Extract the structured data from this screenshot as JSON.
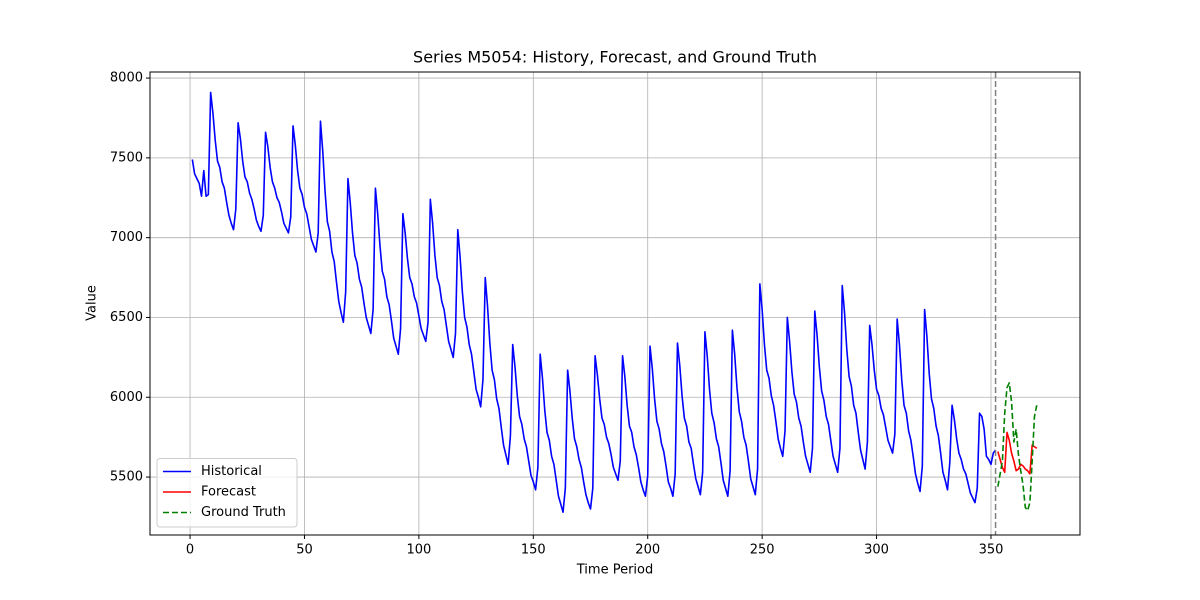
{
  "chart_data": {
    "type": "line",
    "title": "Series M5054: History, Forecast, and Ground Truth",
    "x_label": "Time Period",
    "y_label": "Value",
    "xlim": [
      -17.5,
      388.9
    ],
    "ylim": [
      5137,
      8038
    ],
    "xticks": [
      0,
      50,
      100,
      150,
      200,
      250,
      300,
      350
    ],
    "yticks": [
      5500,
      6000,
      6500,
      7000,
      7500,
      8000
    ],
    "grid": true,
    "legend": "lower left",
    "vline": 352,
    "vline_color": "#808080",
    "series": [
      {
        "name": "Historical",
        "color": "#0000ff",
        "linestyle": "solid",
        "x": [
          1,
          2,
          3,
          4,
          5,
          6,
          7,
          8,
          9,
          10,
          11,
          12,
          13,
          14,
          15,
          16,
          17,
          18,
          19,
          20,
          21,
          22,
          23,
          24,
          25,
          26,
          27,
          28,
          29,
          30,
          31,
          32,
          33,
          34,
          35,
          36,
          37,
          38,
          39,
          40,
          41,
          42,
          43,
          44,
          45,
          46,
          47,
          48,
          49,
          50,
          51,
          52,
          53,
          54,
          55,
          56,
          57,
          58,
          59,
          60,
          61,
          62,
          63,
          64,
          65,
          66,
          67,
          68,
          69,
          70,
          71,
          72,
          73,
          74,
          75,
          76,
          77,
          78,
          79,
          80,
          81,
          82,
          83,
          84,
          85,
          86,
          87,
          88,
          89,
          90,
          91,
          92,
          93,
          94,
          95,
          96,
          97,
          98,
          99,
          100,
          101,
          102,
          103,
          104,
          105,
          106,
          107,
          108,
          109,
          110,
          111,
          112,
          113,
          114,
          115,
          116,
          117,
          118,
          119,
          120,
          121,
          122,
          123,
          124,
          125,
          126,
          127,
          128,
          129,
          130,
          131,
          132,
          133,
          134,
          135,
          136,
          137,
          138,
          139,
          140,
          141,
          142,
          143,
          144,
          145,
          146,
          147,
          148,
          149,
          150,
          151,
          152,
          153,
          154,
          155,
          156,
          157,
          158,
          159,
          160,
          161,
          162,
          163,
          164,
          165,
          166,
          167,
          168,
          169,
          170,
          171,
          172,
          173,
          174,
          175,
          176,
          177,
          178,
          179,
          180,
          181,
          182,
          183,
          184,
          185,
          186,
          187,
          188,
          189,
          190,
          191,
          192,
          193,
          194,
          195,
          196,
          197,
          198,
          199,
          200,
          201,
          202,
          203,
          204,
          205,
          206,
          207,
          208,
          209,
          210,
          211,
          212,
          213,
          214,
          215,
          216,
          217,
          218,
          219,
          220,
          221,
          222,
          223,
          224,
          225,
          226,
          227,
          228,
          229,
          230,
          231,
          232,
          233,
          234,
          235,
          236,
          237,
          238,
          239,
          240,
          241,
          242,
          243,
          244,
          245,
          246,
          247,
          248,
          249,
          250,
          251,
          252,
          253,
          254,
          255,
          256,
          257,
          258,
          259,
          260,
          261,
          262,
          263,
          264,
          265,
          266,
          267,
          268,
          269,
          270,
          271,
          272,
          273,
          274,
          275,
          276,
          277,
          278,
          279,
          280,
          281,
          282,
          283,
          284,
          285,
          286,
          287,
          288,
          289,
          290,
          291,
          292,
          293,
          294,
          295,
          296,
          297,
          298,
          299,
          300,
          301,
          302,
          303,
          304,
          305,
          306,
          307,
          308,
          309,
          310,
          311,
          312,
          313,
          314,
          315,
          316,
          317,
          318,
          319,
          320,
          321,
          322,
          323,
          324,
          325,
          326,
          327,
          328,
          329,
          330,
          331,
          332,
          333,
          334,
          335,
          336,
          337,
          338,
          339,
          340,
          341,
          342,
          343,
          344,
          345,
          346,
          347,
          348,
          349,
          350,
          351,
          352
        ],
        "values": [
          7490,
          7400,
          7370,
          7340,
          7260,
          7420,
          7260,
          7270,
          7910,
          7780,
          7610,
          7480,
          7440,
          7350,
          7310,
          7220,
          7140,
          7090,
          7050,
          7180,
          7720,
          7620,
          7480,
          7380,
          7350,
          7280,
          7240,
          7180,
          7110,
          7070,
          7040,
          7140,
          7660,
          7570,
          7440,
          7350,
          7310,
          7250,
          7220,
          7160,
          7090,
          7060,
          7030,
          7130,
          7700,
          7580,
          7420,
          7310,
          7270,
          7190,
          7150,
          7070,
          6990,
          6950,
          6910,
          7030,
          7730,
          7540,
          7290,
          7100,
          7040,
          6910,
          6850,
          6720,
          6600,
          6530,
          6470,
          6660,
          7370,
          7220,
          7030,
          6890,
          6840,
          6740,
          6690,
          6590,
          6500,
          6450,
          6400,
          6550,
          7310,
          7150,
          6950,
          6790,
          6740,
          6630,
          6580,
          6480,
          6370,
          6320,
          6270,
          6430,
          7150,
          7030,
          6870,
          6750,
          6710,
          6630,
          6590,
          6510,
          6430,
          6390,
          6350,
          6470,
          7240,
          7090,
          6890,
          6750,
          6700,
          6600,
          6550,
          6450,
          6350,
          6300,
          6250,
          6400,
          7050,
          6880,
          6660,
          6500,
          6440,
          6330,
          6270,
          6160,
          6050,
          6000,
          5940,
          6110,
          6750,
          6570,
          6340,
          6170,
          6110,
          5990,
          5930,
          5810,
          5700,
          5640,
          5580,
          5760,
          6330,
          6190,
          6010,
          5880,
          5830,
          5740,
          5690,
          5600,
          5510,
          5470,
          5420,
          5560,
          6270,
          6120,
          5920,
          5780,
          5730,
          5630,
          5580,
          5480,
          5380,
          5330,
          5280,
          5430,
          6170,
          6040,
          5870,
          5740,
          5690,
          5610,
          5560,
          5470,
          5390,
          5340,
          5300,
          5430,
          6260,
          6140,
          5990,
          5870,
          5830,
          5750,
          5710,
          5640,
          5560,
          5520,
          5480,
          5600,
          6260,
          6130,
          5950,
          5820,
          5780,
          5690,
          5640,
          5560,
          5470,
          5420,
          5380,
          5510,
          6320,
          6180,
          5990,
          5850,
          5800,
          5710,
          5660,
          5570,
          5470,
          5430,
          5380,
          5520,
          6340,
          6200,
          6010,
          5870,
          5820,
          5720,
          5680,
          5580,
          5490,
          5440,
          5390,
          5530,
          6410,
          6260,
          6050,
          5900,
          5840,
          5740,
          5690,
          5590,
          5480,
          5430,
          5380,
          5540,
          6420,
          6270,
          6060,
          5910,
          5850,
          5750,
          5700,
          5600,
          5490,
          5440,
          5390,
          5550,
          6710,
          6550,
          6330,
          6170,
          6120,
          6010,
          5950,
          5850,
          5740,
          5680,
          5630,
          5790,
          6500,
          6350,
          6160,
          6020,
          5970,
          5870,
          5820,
          5720,
          5630,
          5580,
          5530,
          5680,
          6540,
          6390,
          6190,
          6040,
          5980,
          5880,
          5830,
          5730,
          5630,
          5580,
          5530,
          5680,
          6700,
          6530,
          6300,
          6130,
          6070,
          5950,
          5900,
          5780,
          5670,
          5610,
          5550,
          5720,
          6450,
          6330,
          6170,
          6050,
          6010,
          5930,
          5890,
          5810,
          5730,
          5690,
          5650,
          5770,
          6490,
          6330,
          6110,
          5950,
          5900,
          5790,
          5730,
          5630,
          5520,
          5460,
          5410,
          5570,
          6550,
          6380,
          6150,
          5990,
          5930,
          5820,
          5760,
          5650,
          5530,
          5480,
          5420,
          5590,
          5950,
          5860,
          5740,
          5650,
          5610,
          5550,
          5520,
          5460,
          5400,
          5370,
          5340,
          5430,
          5900,
          5880,
          5800,
          5630,
          5610,
          5580,
          5650,
          5670
        ]
      },
      {
        "name": "Forecast",
        "color": "#ff0000",
        "linestyle": "solid",
        "x": [
          353,
          354,
          355,
          356,
          357,
          358,
          359,
          360,
          361,
          362,
          363,
          364,
          365,
          366,
          367,
          368,
          369,
          370
        ],
        "values": [
          5660,
          5610,
          5560,
          5530,
          5780,
          5730,
          5650,
          5600,
          5540,
          5550,
          5580,
          5570,
          5550,
          5540,
          5520,
          5700,
          5690,
          5680
        ]
      },
      {
        "name": "Ground Truth",
        "color": "#008000",
        "linestyle": "dashed",
        "x": [
          353,
          354,
          355,
          356,
          357,
          358,
          359,
          360,
          361,
          362,
          363,
          364,
          365,
          366,
          367,
          368,
          369,
          370
        ],
        "values": [
          5440,
          5520,
          5600,
          5900,
          6060,
          6090,
          5970,
          5720,
          5800,
          5640,
          5540,
          5450,
          5310,
          5290,
          5340,
          5600,
          5880,
          5950
        ]
      }
    ]
  }
}
